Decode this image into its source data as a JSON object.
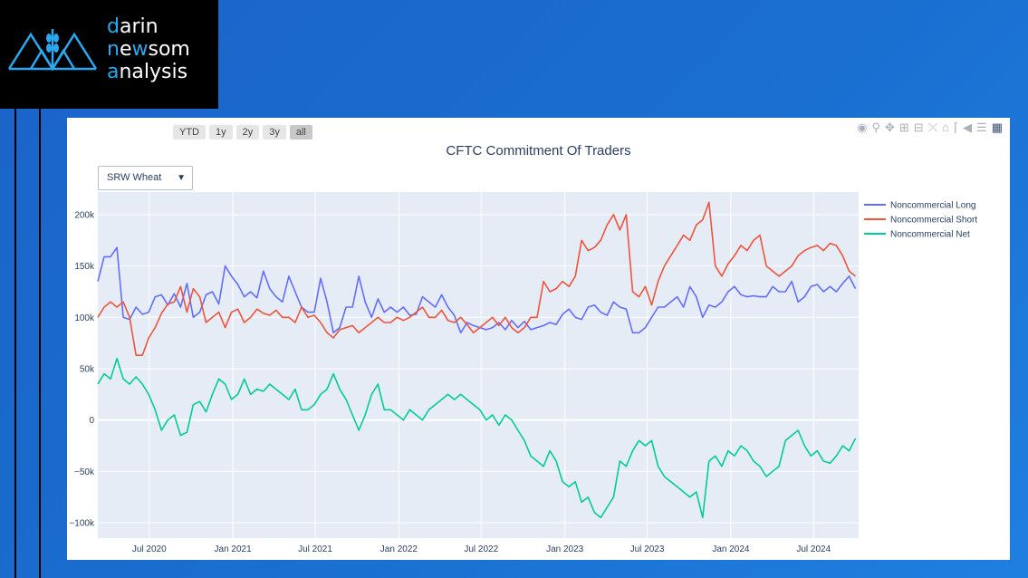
{
  "logo": {
    "line1": [
      "d",
      "arin"
    ],
    "line2": [
      "n",
      "e",
      "w",
      "som"
    ],
    "line3": [
      "a",
      "nalysis"
    ]
  },
  "range_buttons": [
    {
      "label": "YTD",
      "active": false
    },
    {
      "label": "1y",
      "active": false
    },
    {
      "label": "2y",
      "active": false
    },
    {
      "label": "3y",
      "active": false
    },
    {
      "label": "all",
      "active": true
    }
  ],
  "modebar_icons": [
    "camera-icon",
    "zoom-icon",
    "pan-icon",
    "zoom-in-icon",
    "zoom-out-icon",
    "autoscale-icon",
    "reset-axes-icon",
    "spike-lines-icon",
    "hover-closest-icon",
    "hover-compare-icon",
    "plotly-logo-icon"
  ],
  "dropdown": {
    "selected": "SRW Wheat"
  },
  "colors": {
    "long": "#636efa",
    "short": "#ef553b",
    "net": "#00cc96",
    "plot_bg": "#e5ecf6"
  },
  "chart_data": {
    "type": "line",
    "title": "CFTC Commitment Of Traders",
    "xlabel": "",
    "ylabel": "",
    "x_range": [
      "2020-03-10",
      "2024-10-08"
    ],
    "ylim": [
      -115000,
      222000
    ],
    "y_ticks": [
      -100000,
      -50000,
      0,
      50000,
      100000,
      150000,
      200000
    ],
    "y_tick_labels": [
      "−100k",
      "−50k",
      "0",
      "50k",
      "100k",
      "150k",
      "200k"
    ],
    "x_ticks": [
      "2020-07-01",
      "2021-01-01",
      "2021-07-01",
      "2022-01-01",
      "2022-07-01",
      "2023-01-01",
      "2023-07-01",
      "2024-01-01",
      "2024-07-01"
    ],
    "x_tick_labels": [
      "Jul 2020",
      "Jan 2021",
      "Jul 2021",
      "Jan 2022",
      "Jul 2022",
      "Jan 2023",
      "Jul 2023",
      "Jan 2024",
      "Jul 2024"
    ],
    "grid": true,
    "legend_position": "right",
    "x": [
      "2020-03-10",
      "2020-03-24",
      "2020-04-07",
      "2020-04-21",
      "2020-05-05",
      "2020-05-19",
      "2020-06-02",
      "2020-06-16",
      "2020-06-30",
      "2020-07-14",
      "2020-07-28",
      "2020-08-11",
      "2020-08-25",
      "2020-09-08",
      "2020-09-22",
      "2020-10-06",
      "2020-10-20",
      "2020-11-03",
      "2020-11-17",
      "2020-12-01",
      "2020-12-15",
      "2020-12-29",
      "2021-01-12",
      "2021-01-26",
      "2021-02-09",
      "2021-02-23",
      "2021-03-09",
      "2021-03-23",
      "2021-04-06",
      "2021-04-20",
      "2021-05-04",
      "2021-05-18",
      "2021-06-01",
      "2021-06-15",
      "2021-06-29",
      "2021-07-13",
      "2021-07-27",
      "2021-08-10",
      "2021-08-24",
      "2021-09-07",
      "2021-09-21",
      "2021-10-05",
      "2021-10-19",
      "2021-11-02",
      "2021-11-16",
      "2021-11-30",
      "2021-12-14",
      "2021-12-28",
      "2022-01-11",
      "2022-01-25",
      "2022-02-08",
      "2022-02-22",
      "2022-03-08",
      "2022-03-22",
      "2022-04-05",
      "2022-04-19",
      "2022-05-03",
      "2022-05-17",
      "2022-05-31",
      "2022-06-14",
      "2022-06-28",
      "2022-07-12",
      "2022-07-26",
      "2022-08-09",
      "2022-08-23",
      "2022-09-06",
      "2022-09-20",
      "2022-10-04",
      "2022-10-18",
      "2022-11-01",
      "2022-11-15",
      "2022-11-29",
      "2022-12-13",
      "2022-12-27",
      "2023-01-10",
      "2023-01-24",
      "2023-02-07",
      "2023-02-21",
      "2023-03-07",
      "2023-03-21",
      "2023-04-04",
      "2023-04-18",
      "2023-05-02",
      "2023-05-16",
      "2023-05-30",
      "2023-06-13",
      "2023-06-27",
      "2023-07-11",
      "2023-07-25",
      "2023-08-08",
      "2023-08-22",
      "2023-09-05",
      "2023-09-19",
      "2023-10-03",
      "2023-10-17",
      "2023-10-31",
      "2023-11-14",
      "2023-11-28",
      "2023-12-12",
      "2023-12-26",
      "2024-01-09",
      "2024-01-23",
      "2024-02-06",
      "2024-02-20",
      "2024-03-05",
      "2024-03-19",
      "2024-04-02",
      "2024-04-16",
      "2024-04-30",
      "2024-05-14",
      "2024-05-28",
      "2024-06-11",
      "2024-06-25",
      "2024-07-09",
      "2024-07-23",
      "2024-08-06",
      "2024-08-20",
      "2024-09-03",
      "2024-09-17",
      "2024-10-01"
    ],
    "series": [
      {
        "name": "Noncommercial Long",
        "values": [
          135000,
          159000,
          159000,
          168000,
          100000,
          98000,
          110000,
          103000,
          105000,
          120000,
          122000,
          112000,
          123000,
          110000,
          133000,
          100000,
          105000,
          122000,
          125000,
          113000,
          150000,
          140000,
          132000,
          120000,
          125000,
          119000,
          145000,
          128000,
          120000,
          115000,
          140000,
          125000,
          110000,
          105000,
          105000,
          138000,
          115000,
          85000,
          90000,
          110000,
          110000,
          140000,
          115000,
          100000,
          118000,
          105000,
          110000,
          105000,
          110000,
          102000,
          103000,
          120000,
          115000,
          110000,
          122000,
          110000,
          102000,
          85000,
          95000,
          92000,
          90000,
          88000,
          90000,
          95000,
          88000,
          97000,
          90000,
          96000,
          88000,
          90000,
          92000,
          95000,
          93000,
          103000,
          108000,
          100000,
          98000,
          110000,
          112000,
          105000,
          102000,
          115000,
          110000,
          108000,
          85000,
          85000,
          90000,
          100000,
          110000,
          110000,
          115000,
          120000,
          110000,
          130000,
          120000,
          100000,
          112000,
          110000,
          115000,
          125000,
          130000,
          122000,
          120000,
          121000,
          120000,
          120000,
          130000,
          125000,
          125000,
          135000,
          115000,
          120000,
          130000,
          132000,
          125000,
          130000,
          125000,
          133000,
          140000,
          128000
        ]
      },
      {
        "name": "Noncommercial Short",
        "values": [
          100000,
          110000,
          115000,
          110000,
          115000,
          100000,
          63000,
          63000,
          80000,
          90000,
          104000,
          113000,
          115000,
          130000,
          105000,
          128000,
          120000,
          95000,
          100000,
          105000,
          90000,
          105000,
          108000,
          95000,
          100000,
          108000,
          104000,
          102000,
          107000,
          100000,
          100000,
          95000,
          110000,
          100000,
          102000,
          95000,
          85000,
          80000,
          88000,
          90000,
          92000,
          85000,
          90000,
          95000,
          100000,
          95000,
          95000,
          100000,
          97000,
          100000,
          105000,
          110000,
          100000,
          100000,
          107000,
          97000,
          95000,
          100000,
          93000,
          85000,
          90000,
          95000,
          100000,
          92000,
          100000,
          90000,
          85000,
          90000,
          100000,
          100000,
          135000,
          125000,
          128000,
          135000,
          130000,
          140000,
          175000,
          165000,
          168000,
          175000,
          190000,
          200000,
          185000,
          200000,
          125000,
          120000,
          130000,
          112000,
          135000,
          150000,
          160000,
          170000,
          180000,
          175000,
          190000,
          195000,
          212000,
          150000,
          140000,
          152000,
          160000,
          170000,
          165000,
          175000,
          180000,
          150000,
          145000,
          140000,
          145000,
          150000,
          160000,
          165000,
          168000,
          170000,
          165000,
          172000,
          170000,
          160000,
          145000,
          140000
        ]
      },
      {
        "name": "Noncommercial Net",
        "values": [
          35000,
          45000,
          40000,
          60000,
          40000,
          35000,
          42000,
          35000,
          25000,
          10000,
          -10000,
          0,
          5000,
          -15000,
          -12000,
          15000,
          18000,
          8000,
          25000,
          40000,
          35000,
          20000,
          25000,
          40000,
          25000,
          30000,
          28000,
          35000,
          30000,
          25000,
          20000,
          30000,
          10000,
          10000,
          15000,
          25000,
          30000,
          45000,
          30000,
          20000,
          5000,
          -10000,
          5000,
          25000,
          35000,
          10000,
          10000,
          5000,
          0,
          10000,
          5000,
          0,
          10000,
          15000,
          20000,
          25000,
          20000,
          25000,
          20000,
          15000,
          10000,
          0,
          5000,
          -5000,
          5000,
          0,
          -10000,
          -20000,
          -35000,
          -40000,
          -45000,
          -30000,
          -40000,
          -60000,
          -65000,
          -60000,
          -80000,
          -75000,
          -90000,
          -95000,
          -85000,
          -75000,
          -40000,
          -45000,
          -30000,
          -20000,
          -25000,
          -20000,
          -45000,
          -55000,
          -60000,
          -65000,
          -70000,
          -75000,
          -70000,
          -95000,
          -40000,
          -35000,
          -45000,
          -30000,
          -35000,
          -25000,
          -30000,
          -40000,
          -45000,
          -55000,
          -50000,
          -45000,
          -20000,
          -15000,
          -10000,
          -25000,
          -35000,
          -30000,
          -40000,
          -42000,
          -35000,
          -25000,
          -30000,
          -18000
        ]
      }
    ]
  }
}
